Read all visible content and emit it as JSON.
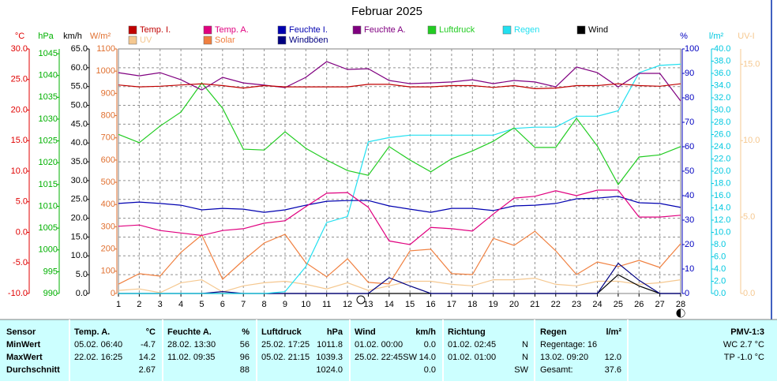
{
  "chart_data": {
    "type": "line",
    "title": "Februar 2025",
    "x": [
      1,
      2,
      3,
      4,
      5,
      6,
      7,
      8,
      9,
      10,
      11,
      12,
      13,
      14,
      15,
      16,
      17,
      18,
      19,
      20,
      21,
      22,
      23,
      24,
      25,
      26,
      27,
      28
    ],
    "xlim": [
      1,
      28
    ],
    "xticks": [
      1,
      2,
      3,
      4,
      5,
      6,
      7,
      8,
      9,
      10,
      11,
      12,
      13,
      14,
      15,
      16,
      17,
      18,
      19,
      20,
      21,
      22,
      23,
      24,
      25,
      26,
      27,
      28
    ],
    "grid": true,
    "axes": [
      {
        "label": "°C",
        "color": "#e00000",
        "lim": [
          -10,
          30
        ],
        "ticks": [
          {
            "value": 30,
            "label": "30.0"
          },
          {
            "value": 25,
            "label": "25.0"
          },
          {
            "value": 20,
            "label": "20.0"
          },
          {
            "value": 15,
            "label": "15.0"
          },
          {
            "value": 10,
            "label": "10.0"
          },
          {
            "value": 5,
            "label": "5.0"
          },
          {
            "value": 0,
            "label": "0.0"
          },
          {
            "value": -5,
            "label": "-5.0"
          },
          {
            "value": -10,
            "label": "-10.0"
          }
        ]
      },
      {
        "label": "hPa",
        "color": "#00b000",
        "lim": [
          990,
          1046.1
        ],
        "ticks": [
          1045,
          1040,
          1035,
          1030,
          1025,
          1020,
          1015,
          1010,
          1005,
          1000,
          995,
          990
        ]
      },
      {
        "label": "km/h",
        "color": "#000000",
        "lim": [
          0,
          65
        ],
        "ticks": [
          {
            "value": 65,
            "label": "65.0"
          },
          {
            "value": 60,
            "label": "60.0"
          },
          {
            "value": 55,
            "label": "55.0"
          },
          {
            "value": 50,
            "label": "50.0"
          },
          {
            "value": 45,
            "label": "45.0"
          },
          {
            "value": 40,
            "label": "40.0"
          },
          {
            "value": 35,
            "label": "35.0"
          },
          {
            "value": 30,
            "label": "30.0"
          },
          {
            "value": 25,
            "label": "25.0"
          },
          {
            "value": 20,
            "label": "20.0"
          },
          {
            "value": 15,
            "label": "15.0"
          },
          {
            "value": 10,
            "label": "10.0"
          },
          {
            "value": 5,
            "label": "5.0"
          },
          {
            "value": 0,
            "label": "0.0"
          }
        ]
      },
      {
        "label": "W/m²",
        "color": "#e07030",
        "lim": [
          0,
          1100
        ],
        "ticks": [
          1100,
          1000,
          900,
          800,
          700,
          600,
          500,
          400,
          300,
          200,
          100,
          0
        ]
      },
      {
        "label": "%",
        "color": "#0000c0",
        "lim": [
          0,
          100
        ],
        "ticks": [
          100,
          90,
          80,
          70,
          60,
          50,
          40,
          30,
          20,
          10,
          0
        ]
      },
      {
        "label": "l/m²",
        "color": "#00c8e0",
        "lim": [
          0,
          40
        ],
        "ticks": [
          {
            "value": 40,
            "label": "40.0"
          },
          {
            "value": 38,
            "label": "38.0"
          },
          {
            "value": 36,
            "label": "36.0"
          },
          {
            "value": 34,
            "label": "34.0"
          },
          {
            "value": 32,
            "label": "32.0"
          },
          {
            "value": 30,
            "label": "30.0"
          },
          {
            "value": 28,
            "label": "28.0"
          },
          {
            "value": 26,
            "label": "26.0"
          },
          {
            "value": 24,
            "label": "24.0"
          },
          {
            "value": 22,
            "label": "22.0"
          },
          {
            "value": 20,
            "label": "20.0"
          },
          {
            "value": 18,
            "label": "18.0"
          },
          {
            "value": 16,
            "label": "16.0"
          },
          {
            "value": 14,
            "label": "14.0"
          },
          {
            "value": 12,
            "label": "12.0"
          },
          {
            "value": 10,
            "label": "10.0"
          },
          {
            "value": 8,
            "label": "8.0"
          },
          {
            "value": 6,
            "label": "6.0"
          },
          {
            "value": 4,
            "label": "4.0"
          },
          {
            "value": 2,
            "label": "2.0"
          },
          {
            "value": 0,
            "label": "0.0"
          }
        ]
      },
      {
        "label": "UV-I",
        "color": "#f5c890",
        "lim": [
          0,
          16
        ],
        "ticks": [
          {
            "value": 15,
            "label": "15.0"
          },
          {
            "value": 10,
            "label": "10.0"
          },
          {
            "value": 5,
            "label": "5.0"
          },
          {
            "value": 0,
            "label": "0.0"
          }
        ]
      }
    ],
    "series": [
      {
        "name": "Temp. I.",
        "color": "#c00000",
        "axis": "°C",
        "values": [
          24.1,
          23.8,
          23.9,
          24.1,
          24.3,
          24.0,
          23.6,
          24.0,
          23.8,
          23.8,
          23.8,
          23.8,
          24.2,
          24.2,
          23.8,
          23.8,
          24.0,
          24.0,
          23.7,
          24.0,
          23.5,
          23.6,
          24.0,
          24.0,
          24.3,
          24.0,
          23.9,
          24.3
        ]
      },
      {
        "name": "Temp. A.",
        "color": "#e0007f",
        "axis": "°C",
        "values": [
          1.0,
          1.2,
          0.3,
          -0.1,
          -0.5,
          0.3,
          0.6,
          1.5,
          1.9,
          4.2,
          6.4,
          6.5,
          4.1,
          -1.4,
          -2.0,
          0.8,
          0.6,
          0.2,
          3.0,
          5.6,
          5.9,
          6.8,
          6.0,
          6.9,
          6.9,
          2.5,
          2.5,
          2.8
        ]
      },
      {
        "name": "Feuchte I.",
        "color": "#0000b0",
        "axis": "%",
        "values": [
          36.8,
          37.4,
          36.8,
          36.1,
          34.2,
          34.8,
          34.5,
          33.2,
          34.2,
          36.1,
          37.7,
          38.0,
          38.0,
          35.8,
          34.5,
          33.2,
          34.8,
          34.8,
          33.9,
          35.8,
          36.1,
          36.8,
          38.7,
          39.0,
          39.7,
          37.1,
          36.8,
          35.2
        ]
      },
      {
        "name": "Feuchte A.",
        "color": "#800080",
        "axis": "%",
        "values": [
          90.3,
          89.0,
          90.3,
          87.4,
          83.2,
          88.4,
          86.1,
          85.2,
          84.2,
          88.4,
          94.8,
          91.6,
          91.9,
          87.1,
          85.8,
          86.1,
          86.5,
          87.4,
          85.8,
          87.1,
          86.5,
          84.5,
          92.6,
          90.3,
          84.5,
          90.0,
          90.0,
          78.7
        ]
      },
      {
        "name": "Luftdruck",
        "color": "#22cc22",
        "axis": "hPa",
        "values": [
          1026.5,
          1024.6,
          1028.4,
          1031.6,
          1038.3,
          1032.5,
          1023.1,
          1022.9,
          1027.1,
          1023.3,
          1020.6,
          1018.2,
          1017.1,
          1023.7,
          1020.6,
          1017.9,
          1020.9,
          1022.7,
          1024.9,
          1028.0,
          1023.5,
          1023.5,
          1030.2,
          1023.8,
          1015.0,
          1021.3,
          1021.8,
          1023.7
        ]
      },
      {
        "name": "Regen",
        "color": "#22e0f0",
        "axis": "l/m²",
        "values": [
          0,
          0,
          0,
          0,
          0,
          0,
          0,
          0,
          0.3,
          4.4,
          11.6,
          12.6,
          24.8,
          25.5,
          25.9,
          25.9,
          25.9,
          25.9,
          25.9,
          27.0,
          27.2,
          27.2,
          29.0,
          29.0,
          29.9,
          36.1,
          37.3,
          37.5
        ]
      },
      {
        "name": "Wind",
        "color": "#000000",
        "axis": "km/h",
        "values": [
          0,
          0,
          0,
          0,
          0,
          0,
          0,
          0,
          0,
          0,
          0,
          0,
          0,
          0,
          0,
          0,
          0,
          0,
          0,
          0,
          0,
          0,
          0,
          0,
          5.0,
          2.0,
          0,
          0
        ]
      },
      {
        "name": "UV",
        "color": "#f5c890",
        "axis": "UV-I",
        "values": [
          0.2,
          0.3,
          0.05,
          0.7,
          0.9,
          0.1,
          0.5,
          0.7,
          0.8,
          0.6,
          0.3,
          0.7,
          0.2,
          0.5,
          0.8,
          0.8,
          0.6,
          0.5,
          0.9,
          0.9,
          1.0,
          0.6,
          0.5,
          0.8,
          0.8,
          0.6,
          0.7,
          0.9
        ]
      },
      {
        "name": "Solar",
        "color": "#f08040",
        "axis": "W/m²",
        "values": [
          42,
          89,
          78,
          185,
          263,
          64,
          149,
          227,
          266,
          138,
          75,
          156,
          50,
          43,
          192,
          199,
          89,
          85,
          248,
          216,
          280,
          192,
          85,
          142,
          121,
          149,
          117,
          224
        ]
      },
      {
        "name": "Windböen",
        "color": "#000080",
        "axis": "km/h",
        "values": [
          0,
          0,
          0,
          0,
          0,
          0.5,
          0,
          0,
          0,
          0,
          0,
          0,
          0,
          4.2,
          2.0,
          0,
          0,
          0,
          0,
          0,
          0,
          0,
          0,
          0,
          8.0,
          3.5,
          0,
          0
        ]
      }
    ]
  },
  "table": {
    "header": {
      "sensor": "Sensor",
      "temp_name": "Temp. A.",
      "temp_unit": "°C",
      "hum_name": "Feuchte A.",
      "hum_unit": "%",
      "press_name": "Luftdruck",
      "press_unit": "hPa",
      "wind_name": "Wind",
      "wind_unit": "km/h",
      "dir_name": "Richtung",
      "rain_name": "Regen",
      "rain_unit": "l/m²",
      "pmv": "PMV-1:3"
    },
    "rows": [
      {
        "sensor": "MinWert",
        "temp_time": "05.02. 06:40",
        "temp": "-4.7",
        "hum_time": "28.02. 13:30",
        "hum": "56",
        "press_time": "25.02. 17:25",
        "press": "1011.8",
        "wind_time": "01.02. 00:00",
        "wind": "0.0",
        "dir_time": "01.02. 02:45",
        "dir": "N",
        "rain_time": "Regentage: 16",
        "pmv": "WC 2.7 °C"
      },
      {
        "sensor": "MaxWert",
        "temp_time": "22.02. 16:25",
        "temp": "14.2",
        "hum_time": "11.02. 09:35",
        "hum": "96",
        "press_time": "05.02. 21:15",
        "press": "1039.3",
        "wind_time": "25.02. 22:45",
        "wind_dir": "SW",
        "wind": "14.0",
        "dir_time": "01.02. 01:00",
        "dir": "N",
        "rain_time": "13.02. 09:20",
        "rain": "12.0",
        "pmv": "TP -1.0 °C"
      },
      {
        "sensor": "Durchschnitt",
        "temp": "2.67",
        "hum": "88",
        "press": "1024.0",
        "wind": "0.0",
        "dir": "SW",
        "rain_time": "Gesamt:",
        "rain": "37.6"
      }
    ]
  }
}
